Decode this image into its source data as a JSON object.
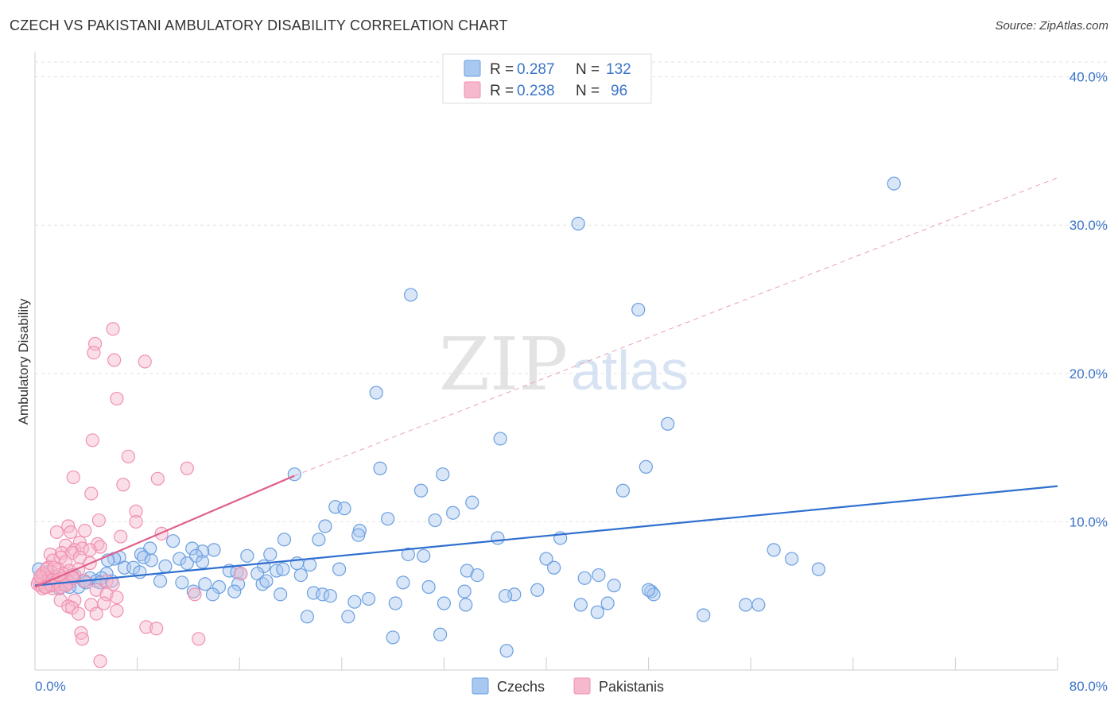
{
  "title": "CZECH VS PAKISTANI AMBULATORY DISABILITY CORRELATION CHART",
  "source": "Source: ZipAtlas.com",
  "watermark": {
    "zip": "ZIP",
    "atlas": "atlas"
  },
  "legend": {
    "r_label": "R =",
    "n_label": "N =",
    "rows": [
      {
        "r": "0.287",
        "n": "132",
        "color": "#a8c8f0"
      },
      {
        "r": "0.238",
        "n": "96",
        "color": "#f6b8cc"
      }
    ]
  },
  "bottom_legend": [
    "Czechs",
    "Pakistanis"
  ],
  "chart_data": {
    "type": "scatter",
    "title": "CZECH VS PAKISTANI AMBULATORY DISABILITY CORRELATION CHART",
    "ylabel": "Ambulatory Disability",
    "xlabel": "",
    "xlim": [
      0,
      80
    ],
    "ylim": [
      0,
      41
    ],
    "x_tick_labels": [
      "0.0%",
      "80.0%"
    ],
    "y_tick_labels": [
      "10.0%",
      "20.0%",
      "30.0%",
      "40.0%"
    ],
    "y_ticks": [
      10,
      20,
      30,
      40
    ],
    "grid": true,
    "legend_position": "top-center",
    "series": [
      {
        "name": "Czechs",
        "color": "#6a9fe0",
        "fill": "#a8c8f0",
        "trend": {
          "x": [
            0,
            80
          ],
          "y": [
            5.7,
            12.4
          ],
          "style": "solid",
          "color": "#2f6fd0"
        },
        "points": [
          [
            67.2,
            32.8
          ],
          [
            42.5,
            30.1
          ],
          [
            29.4,
            25.3
          ],
          [
            47.2,
            24.3
          ],
          [
            26.7,
            18.7
          ],
          [
            49.5,
            16.6
          ],
          [
            36.4,
            15.6
          ],
          [
            20.3,
            13.2
          ],
          [
            27.0,
            13.6
          ],
          [
            31.9,
            13.2
          ],
          [
            47.8,
            13.7
          ],
          [
            30.2,
            12.1
          ],
          [
            46.0,
            12.1
          ],
          [
            34.2,
            11.3
          ],
          [
            23.5,
            11.0
          ],
          [
            24.2,
            10.9
          ],
          [
            27.6,
            10.2
          ],
          [
            32.7,
            10.6
          ],
          [
            31.3,
            10.1
          ],
          [
            22.7,
            9.7
          ],
          [
            25.4,
            9.4
          ],
          [
            25.3,
            9.1
          ],
          [
            36.2,
            8.9
          ],
          [
            41.1,
            8.9
          ],
          [
            22.2,
            8.8
          ],
          [
            19.5,
            8.8
          ],
          [
            12.3,
            8.2
          ],
          [
            10.8,
            8.7
          ],
          [
            9.0,
            8.2
          ],
          [
            14.0,
            8.1
          ],
          [
            13.1,
            8.0
          ],
          [
            8.3,
            7.8
          ],
          [
            6.6,
            7.6
          ],
          [
            6.2,
            7.5
          ],
          [
            8.5,
            7.6
          ],
          [
            12.6,
            7.7
          ],
          [
            16.6,
            7.7
          ],
          [
            18.4,
            7.8
          ],
          [
            11.3,
            7.5
          ],
          [
            11.9,
            7.2
          ],
          [
            13.1,
            7.3
          ],
          [
            17.9,
            7.0
          ],
          [
            20.5,
            7.2
          ],
          [
            21.5,
            7.1
          ],
          [
            29.2,
            7.8
          ],
          [
            30.4,
            7.7
          ],
          [
            40.0,
            7.5
          ],
          [
            40.6,
            6.9
          ],
          [
            57.8,
            8.1
          ],
          [
            59.2,
            7.5
          ],
          [
            61.3,
            6.8
          ],
          [
            5.7,
            7.4
          ],
          [
            5.6,
            6.5
          ],
          [
            7.0,
            6.9
          ],
          [
            7.7,
            6.9
          ],
          [
            8.2,
            6.6
          ],
          [
            9.1,
            7.4
          ],
          [
            10.2,
            7.0
          ],
          [
            15.2,
            6.7
          ],
          [
            15.8,
            6.6
          ],
          [
            16.1,
            6.5
          ],
          [
            17.4,
            6.5
          ],
          [
            18.9,
            6.7
          ],
          [
            19.4,
            6.8
          ],
          [
            20.8,
            6.4
          ],
          [
            23.8,
            6.8
          ],
          [
            33.8,
            6.7
          ],
          [
            34.6,
            6.4
          ],
          [
            43.0,
            6.2
          ],
          [
            44.1,
            6.4
          ],
          [
            5.2,
            6.2
          ],
          [
            4.3,
            6.2
          ],
          [
            3.8,
            6.0
          ],
          [
            3.4,
            5.6
          ],
          [
            2.5,
            5.8
          ],
          [
            1.9,
            5.5
          ],
          [
            1.2,
            5.7
          ],
          [
            0.5,
            6.0
          ],
          [
            0.3,
            6.8
          ],
          [
            0.8,
            6.4
          ],
          [
            1.4,
            6.1
          ],
          [
            2.2,
            6.0
          ],
          [
            2.9,
            6.2
          ],
          [
            4.8,
            6.0
          ],
          [
            5.1,
            5.9
          ],
          [
            9.8,
            6.0
          ],
          [
            11.5,
            5.9
          ],
          [
            13.3,
            5.8
          ],
          [
            14.4,
            5.6
          ],
          [
            15.9,
            5.8
          ],
          [
            17.8,
            5.8
          ],
          [
            18.1,
            6.0
          ],
          [
            28.8,
            5.9
          ],
          [
            30.8,
            5.6
          ],
          [
            45.3,
            5.7
          ],
          [
            12.4,
            5.3
          ],
          [
            13.9,
            5.1
          ],
          [
            15.6,
            5.3
          ],
          [
            19.2,
            5.1
          ],
          [
            21.8,
            5.2
          ],
          [
            22.5,
            5.1
          ],
          [
            23.1,
            5.0
          ],
          [
            33.6,
            5.3
          ],
          [
            37.5,
            5.1
          ],
          [
            36.8,
            5.0
          ],
          [
            39.3,
            5.4
          ],
          [
            48.2,
            5.3
          ],
          [
            48.4,
            5.1
          ],
          [
            48.0,
            5.4
          ],
          [
            25.0,
            4.6
          ],
          [
            26.1,
            4.8
          ],
          [
            32.0,
            4.5
          ],
          [
            33.7,
            4.4
          ],
          [
            28.2,
            4.5
          ],
          [
            42.7,
            4.4
          ],
          [
            44.8,
            4.5
          ],
          [
            55.6,
            4.4
          ],
          [
            56.6,
            4.4
          ],
          [
            21.3,
            3.6
          ],
          [
            24.5,
            3.6
          ],
          [
            44.0,
            3.9
          ],
          [
            52.3,
            3.7
          ],
          [
            28.0,
            2.2
          ],
          [
            31.7,
            2.4
          ],
          [
            36.9,
            1.3
          ],
          [
            1.0,
            6.6
          ],
          [
            0.6,
            5.9
          ],
          [
            1.7,
            6.3
          ],
          [
            2.7,
            5.6
          ],
          [
            3.1,
            6.4
          ],
          [
            4.0,
            5.9
          ],
          [
            6.0,
            6.0
          ]
        ]
      },
      {
        "name": "Pakistanis",
        "color": "#f090b0",
        "fill": "#f6b8cc",
        "trend": {
          "x": [
            0,
            20.3
          ],
          "y": [
            5.6,
            13.1
          ],
          "style": "solid",
          "color": "#e0608a"
        },
        "trend_extension": {
          "x": [
            20.3,
            80
          ],
          "y": [
            13.1,
            33.2
          ],
          "style": "dashed",
          "color": "#e8a0b8"
        },
        "points": [
          [
            6.1,
            23.0
          ],
          [
            4.7,
            22.0
          ],
          [
            4.6,
            21.4
          ],
          [
            6.2,
            20.9
          ],
          [
            8.6,
            20.8
          ],
          [
            6.4,
            18.3
          ],
          [
            4.5,
            15.5
          ],
          [
            7.3,
            14.4
          ],
          [
            11.9,
            13.6
          ],
          [
            9.6,
            12.9
          ],
          [
            3.0,
            13.0
          ],
          [
            6.9,
            12.5
          ],
          [
            4.4,
            11.9
          ],
          [
            7.9,
            10.7
          ],
          [
            5.0,
            10.1
          ],
          [
            7.9,
            10.0
          ],
          [
            2.6,
            9.7
          ],
          [
            3.9,
            9.4
          ],
          [
            2.8,
            9.3
          ],
          [
            1.7,
            9.3
          ],
          [
            9.9,
            9.2
          ],
          [
            6.7,
            9.0
          ],
          [
            3.5,
            8.6
          ],
          [
            4.9,
            8.5
          ],
          [
            5.1,
            8.3
          ],
          [
            2.4,
            8.4
          ],
          [
            3.1,
            8.1
          ],
          [
            3.7,
            8.2
          ],
          [
            4.3,
            8.1
          ],
          [
            1.2,
            7.8
          ],
          [
            2.1,
            7.9
          ],
          [
            2.9,
            7.9
          ],
          [
            3.5,
            7.6
          ],
          [
            2.0,
            7.6
          ],
          [
            1.4,
            7.4
          ],
          [
            2.4,
            7.3
          ],
          [
            4.3,
            7.2
          ],
          [
            1.0,
            6.9
          ],
          [
            1.8,
            6.8
          ],
          [
            2.7,
            6.7
          ],
          [
            3.4,
            6.8
          ],
          [
            1.3,
            6.6
          ],
          [
            2.2,
            6.5
          ],
          [
            2.9,
            6.4
          ],
          [
            0.8,
            6.4
          ],
          [
            1.5,
            6.3
          ],
          [
            0.5,
            6.2
          ],
          [
            1.0,
            6.1
          ],
          [
            0.3,
            6.0
          ],
          [
            0.7,
            5.9
          ],
          [
            1.2,
            5.8
          ],
          [
            1.6,
            5.9
          ],
          [
            2.5,
            6.1
          ],
          [
            0.4,
            5.7
          ],
          [
            0.9,
            5.6
          ],
          [
            1.4,
            5.5
          ],
          [
            1.9,
            5.8
          ],
          [
            5.6,
            6.0
          ],
          [
            6.1,
            5.8
          ],
          [
            16.1,
            6.5
          ],
          [
            4.8,
            5.4
          ],
          [
            5.6,
            5.1
          ],
          [
            12.5,
            5.1
          ],
          [
            6.4,
            4.9
          ],
          [
            2.0,
            4.7
          ],
          [
            3.1,
            4.7
          ],
          [
            4.4,
            4.4
          ],
          [
            5.4,
            4.5
          ],
          [
            2.6,
            4.3
          ],
          [
            2.9,
            4.2
          ],
          [
            3.4,
            3.8
          ],
          [
            4.8,
            3.8
          ],
          [
            6.4,
            4.0
          ],
          [
            8.7,
            2.9
          ],
          [
            9.5,
            2.8
          ],
          [
            3.6,
            2.5
          ],
          [
            3.7,
            2.1
          ],
          [
            12.8,
            2.1
          ],
          [
            5.1,
            0.6
          ],
          [
            0.6,
            6.5
          ],
          [
            1.1,
            6.2
          ],
          [
            1.7,
            6.0
          ],
          [
            2.3,
            6.2
          ],
          [
            0.2,
            5.8
          ],
          [
            0.6,
            5.5
          ],
          [
            1.3,
            5.7
          ],
          [
            2.0,
            5.6
          ],
          [
            2.7,
            5.9
          ],
          [
            0.9,
            6.8
          ],
          [
            1.9,
            6.4
          ],
          [
            3.0,
            6.2
          ],
          [
            3.9,
            6.0
          ],
          [
            0.4,
            6.3
          ],
          [
            1.5,
            6.9
          ],
          [
            2.4,
            5.7
          ],
          [
            0.8,
            5.6
          ]
        ]
      }
    ]
  }
}
